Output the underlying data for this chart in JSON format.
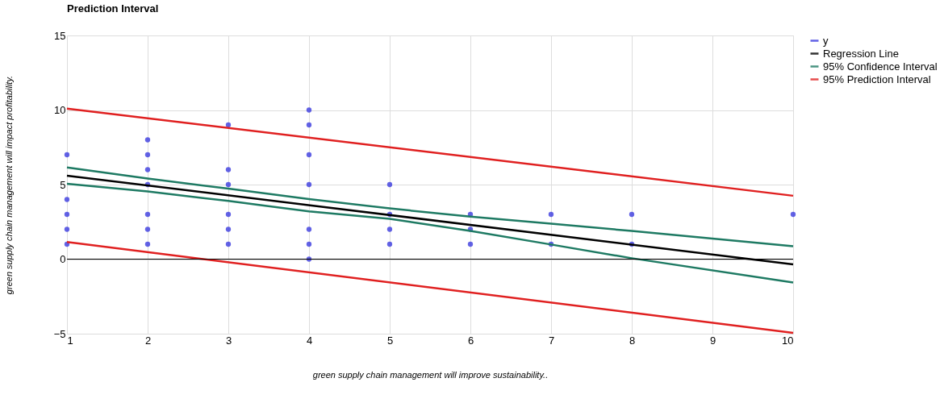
{
  "chart_data": {
    "type": "scatter",
    "title": "Prediction Interval",
    "xlabel": "green supply chain management will improve sustainability..",
    "ylabel": "green supply chain management will impact profitability.",
    "xlim": [
      1,
      10
    ],
    "ylim": [
      -5,
      15
    ],
    "xticks": [
      1,
      2,
      3,
      4,
      5,
      6,
      7,
      8,
      9,
      10
    ],
    "yticks": [
      -5,
      0,
      5,
      10,
      15
    ],
    "grid": true,
    "legend": "right",
    "ref_lines": [
      {
        "axis": "y",
        "value": 0,
        "color": "#000000"
      }
    ],
    "series": [
      {
        "name": "y",
        "marker": "circle",
        "color": "#3b3bdf",
        "x": [
          1,
          1,
          1,
          1,
          1,
          2,
          2,
          2,
          2,
          2,
          2,
          2,
          3,
          3,
          3,
          3,
          3,
          3,
          4,
          4,
          4,
          4,
          4,
          4,
          4,
          5,
          5,
          5,
          5,
          6,
          6,
          6,
          7,
          7,
          8,
          8,
          10
        ],
        "values": [
          7,
          4,
          3,
          2,
          1,
          8,
          7,
          6,
          5,
          3,
          2,
          1,
          9,
          6,
          5,
          3,
          2,
          1,
          10,
          9,
          7,
          5,
          2,
          1,
          0,
          5,
          3,
          2,
          1,
          3,
          2,
          1,
          3,
          1,
          3,
          1,
          3
        ]
      },
      {
        "name": "Regression Line",
        "type": "line",
        "line_style": "solid",
        "color": "#000000",
        "x": [
          1,
          10
        ],
        "values": [
          5.6,
          -0.35
        ]
      },
      {
        "name": "95% Confidence Interval",
        "type": "line",
        "line_style": "solid",
        "color": "#1e7a63",
        "x": [
          1,
          2,
          3,
          4,
          5,
          6,
          7,
          8,
          10
        ],
        "values": [
          6.15,
          5.4,
          4.73,
          4.03,
          3.4,
          2.85,
          2.38,
          1.89,
          0.87
        ]
      },
      {
        "type": "line",
        "line_style": "solid",
        "color": "#1e7a63",
        "x": [
          1,
          2,
          3,
          4,
          5,
          6,
          7,
          8,
          10
        ],
        "values": [
          5.05,
          4.54,
          3.9,
          3.2,
          2.7,
          1.89,
          0.98,
          0.06,
          -1.57
        ]
      },
      {
        "name": "95% Prediction Interval",
        "type": "line",
        "line_style": "solid",
        "color": "#e02020",
        "x": [
          1,
          10
        ],
        "values": [
          10.1,
          4.25
        ]
      },
      {
        "type": "line",
        "line_style": "solid",
        "color": "#e02020",
        "x": [
          1,
          10
        ],
        "values": [
          1.15,
          -4.95
        ]
      }
    ]
  }
}
